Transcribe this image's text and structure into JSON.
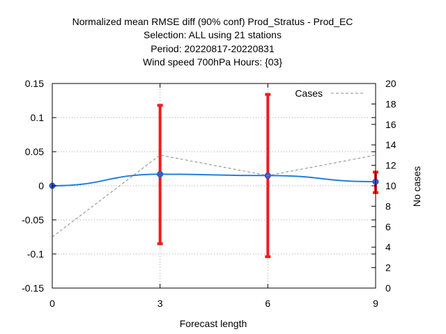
{
  "chart_data": {
    "type": "line",
    "title_lines": [
      "Normalized mean RMSE diff (90% conf) Prod_Stratus - Prod_EC",
      "Selection: ALL using    21 stations",
      "Period: 20220817-20220831",
      "Wind speed 700hPa   Hours: {03}"
    ],
    "xlabel": "Forecast length",
    "ylabel": "",
    "y2label": "No cases",
    "x": [
      0,
      3,
      6,
      9
    ],
    "xlim": [
      0,
      9
    ],
    "ylim": [
      -0.15,
      0.15
    ],
    "y2lim": [
      0,
      20
    ],
    "x_ticks": [
      "0",
      "3",
      "6",
      "9"
    ],
    "y_ticks": [
      "0.15",
      "0.1",
      "0.05",
      "0",
      "-0.05",
      "-0.1",
      "-0.15"
    ],
    "y2_ticks": [
      "20",
      "18",
      "16",
      "14",
      "12",
      "10",
      "8",
      "6",
      "4",
      "2",
      "0"
    ],
    "grid": true,
    "series": [
      {
        "name": "",
        "axis": "y",
        "color": "#1f7fe0",
        "values": [
          0.0,
          0.017,
          0.015,
          0.006
        ],
        "errors": [
          null,
          [
            -0.085,
            0.118
          ],
          [
            -0.104,
            0.134
          ],
          [
            -0.01,
            0.02
          ]
        ],
        "error_color": "#ee1c1c"
      },
      {
        "name": "Cases",
        "axis": "y2",
        "color": "#888888",
        "style": "dashed",
        "values": [
          5,
          13,
          11,
          13
        ]
      }
    ],
    "legend": {
      "position": "top-right",
      "entries": [
        "Cases"
      ]
    }
  }
}
